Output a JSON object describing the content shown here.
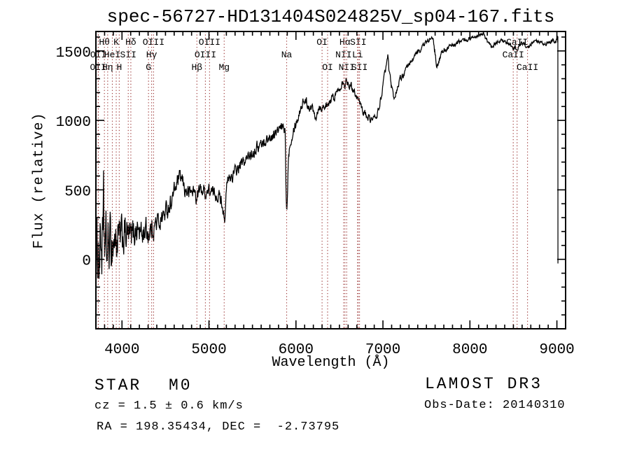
{
  "title": "spec-56727-HD131404S024825V_sp04-167.fits",
  "annotations": {
    "object_type": "STAR",
    "subclass": "M0",
    "cz": "cz = 1.5 ± 0.6 km/s",
    "ra_dec": "RA = 198.35434, DEC =  -2.73795",
    "survey": "LAMOST DR3",
    "obs_date": "Obs-Date: 20140310"
  },
  "colors": {
    "background": "#ffffff",
    "spectrum": "#000000",
    "axis": "#000000",
    "line_marker": "#9e3a3a",
    "text": "#000000"
  },
  "spectral_lines": [
    {
      "label": "OII",
      "wavelength": 3726.0,
      "row": 3
    },
    {
      "label": "OII",
      "wavelength": 3728.8,
      "row": 2
    },
    {
      "label": "Hθ",
      "wavelength": 3798.0,
      "row": 1
    },
    {
      "label": "Hη",
      "wavelength": 3835.4,
      "row": 3
    },
    {
      "label": "HeI",
      "wavelength": 3889.0,
      "row": 2
    },
    {
      "label": "K",
      "wavelength": 3933.7,
      "row": 1
    },
    {
      "label": "H",
      "wavelength": 3968.5,
      "row": 3
    },
    {
      "label": "SII",
      "wavelength": 4072.0,
      "row": 2
    },
    {
      "label": "Hδ",
      "wavelength": 4101.7,
      "row": 1
    },
    {
      "label": "G",
      "wavelength": 4305.0,
      "row": 3
    },
    {
      "label": "Hγ",
      "wavelength": 4340.5,
      "row": 2
    },
    {
      "label": "OIII",
      "wavelength": 4363.2,
      "row": 1
    },
    {
      "label": "Hβ",
      "wavelength": 4861.3,
      "row": 3
    },
    {
      "label": "OIII",
      "wavelength": 4958.9,
      "row": 2
    },
    {
      "label": "OIII",
      "wavelength": 5006.8,
      "row": 1
    },
    {
      "label": "Mg",
      "wavelength": 5175.0,
      "row": 3
    },
    {
      "label": "Na",
      "wavelength": 5893.0,
      "row": 2
    },
    {
      "label": "OI",
      "wavelength": 6300.3,
      "row": 1
    },
    {
      "label": "OI",
      "wavelength": 6363.8,
      "row": 3
    },
    {
      "label": "NII",
      "wavelength": 6548.0,
      "row": 2
    },
    {
      "label": "Hα",
      "wavelength": 6562.8,
      "row": 1
    },
    {
      "label": "NII",
      "wavelength": 6583.5,
      "row": 3
    },
    {
      "label": "Li",
      "wavelength": 6707.9,
      "row": 2
    },
    {
      "label": "SII",
      "wavelength": 6716.4,
      "row": 1
    },
    {
      "label": "SII",
      "wavelength": 6730.8,
      "row": 3
    },
    {
      "label": "CaII",
      "wavelength": 8498.0,
      "row": 2
    },
    {
      "label": "CaII",
      "wavelength": 8542.1,
      "row": 1
    },
    {
      "label": "CaII",
      "wavelength": 8662.1,
      "row": 3
    }
  ],
  "chart_data": {
    "type": "line",
    "title": "spec-56727-HD131404S024825V_sp04-167.fits",
    "xlabel": "Wavelength (Å)",
    "ylabel": "Flux (relative)",
    "xlim": [
      3700,
      9100
    ],
    "ylim": [
      -500,
      1640
    ],
    "x_major_ticks": [
      4000,
      5000,
      6000,
      7000,
      8000,
      9000
    ],
    "y_major_ticks": [
      0,
      500,
      1000,
      1500
    ],
    "x_minor_step": 100,
    "y_minor_step": 100,
    "grid": false,
    "legend": false,
    "series": [
      {
        "name": "spectrum",
        "color": "#000000",
        "representation": "envelope anchor points [wavelength_A, flux]; rendered trace adds correlated pseudo-noise of amplitude sigma(λ)",
        "sample_step_angstrom": 4,
        "noise_seed": 1234,
        "points": [
          [
            3700,
            60
          ],
          [
            3712,
            -30
          ],
          [
            3724,
            140
          ],
          [
            3740,
            30
          ],
          [
            3755,
            150
          ],
          [
            3770,
            80
          ],
          [
            3786,
            120
          ],
          [
            3788,
            590
          ],
          [
            3790,
            610
          ],
          [
            3792,
            120
          ],
          [
            3812,
            80
          ],
          [
            3835,
            70
          ],
          [
            3862,
            110
          ],
          [
            3889,
            115
          ],
          [
            3912,
            150
          ],
          [
            3934,
            115
          ],
          [
            3952,
            160
          ],
          [
            3968,
            125
          ],
          [
            4000,
            150
          ],
          [
            4040,
            185
          ],
          [
            4072,
            160
          ],
          [
            4102,
            150
          ],
          [
            4135,
            200
          ],
          [
            4180,
            225
          ],
          [
            4226,
            175
          ],
          [
            4262,
            215
          ],
          [
            4305,
            195
          ],
          [
            4341,
            215
          ],
          [
            4385,
            250
          ],
          [
            4440,
            285
          ],
          [
            4500,
            335
          ],
          [
            4560,
            410
          ],
          [
            4620,
            525
          ],
          [
            4660,
            590
          ],
          [
            4692,
            565
          ],
          [
            4725,
            500
          ],
          [
            4762,
            478
          ],
          [
            4820,
            495
          ],
          [
            4845,
            470
          ],
          [
            4861,
            425
          ],
          [
            4878,
            490
          ],
          [
            4920,
            505
          ],
          [
            4959,
            480
          ],
          [
            5000,
            492
          ],
          [
            5050,
            472
          ],
          [
            5100,
            468
          ],
          [
            5140,
            430
          ],
          [
            5165,
            360
          ],
          [
            5186,
            285
          ],
          [
            5200,
            500
          ],
          [
            5218,
            570
          ],
          [
            5245,
            588
          ],
          [
            5285,
            615
          ],
          [
            5330,
            650
          ],
          [
            5380,
            688
          ],
          [
            5425,
            710
          ],
          [
            5480,
            760
          ],
          [
            5540,
            800
          ],
          [
            5600,
            828
          ],
          [
            5660,
            855
          ],
          [
            5720,
            882
          ],
          [
            5780,
            915
          ],
          [
            5842,
            945
          ],
          [
            5875,
            940
          ],
          [
            5888,
            430
          ],
          [
            5894,
            336
          ],
          [
            5900,
            450
          ],
          [
            5916,
            780
          ],
          [
            5942,
            870
          ],
          [
            5980,
            958
          ],
          [
            6020,
            1010
          ],
          [
            6062,
            1110
          ],
          [
            6100,
            1150
          ],
          [
            6142,
            1108
          ],
          [
            6185,
            1088
          ],
          [
            6230,
            1035
          ],
          [
            6270,
            1108
          ],
          [
            6302,
            1088
          ],
          [
            6332,
            1118
          ],
          [
            6364,
            1088
          ],
          [
            6400,
            1148
          ],
          [
            6452,
            1180
          ],
          [
            6502,
            1240
          ],
          [
            6540,
            1292
          ],
          [
            6563,
            1258
          ],
          [
            6582,
            1290
          ],
          [
            6612,
            1262
          ],
          [
            6652,
            1230
          ],
          [
            6700,
            1180
          ],
          [
            6732,
            1128
          ],
          [
            6772,
            1068
          ],
          [
            6832,
            1022
          ],
          [
            6882,
            1005
          ],
          [
            6922,
            1022
          ],
          [
            6952,
            1080
          ],
          [
            6982,
            1180
          ],
          [
            7012,
            1295
          ],
          [
            7042,
            1405
          ],
          [
            7056,
            1460
          ],
          [
            7072,
            1340
          ],
          [
            7102,
            1228
          ],
          [
            7132,
            1160
          ],
          [
            7162,
            1232
          ],
          [
            7202,
            1300
          ],
          [
            7262,
            1352
          ],
          [
            7322,
            1420
          ],
          [
            7382,
            1480
          ],
          [
            7442,
            1520
          ],
          [
            7502,
            1562
          ],
          [
            7546,
            1605
          ],
          [
            7582,
            1558
          ],
          [
            7602,
            1468
          ],
          [
            7618,
            1388
          ],
          [
            7642,
            1402
          ],
          [
            7666,
            1482
          ],
          [
            7702,
            1510
          ],
          [
            7752,
            1525
          ],
          [
            7802,
            1540
          ],
          [
            7862,
            1560
          ],
          [
            7922,
            1575
          ],
          [
            7982,
            1586
          ],
          [
            8042,
            1600
          ],
          [
            8102,
            1620
          ],
          [
            8150,
            1630
          ],
          [
            8202,
            1568
          ],
          [
            8252,
            1524
          ],
          [
            8302,
            1560
          ],
          [
            8362,
            1580
          ],
          [
            8422,
            1555
          ],
          [
            8472,
            1540
          ],
          [
            8498,
            1506
          ],
          [
            8522,
            1532
          ],
          [
            8542,
            1500
          ],
          [
            8582,
            1548
          ],
          [
            8622,
            1560
          ],
          [
            8662,
            1515
          ],
          [
            8702,
            1550
          ],
          [
            8752,
            1570
          ],
          [
            8802,
            1555
          ],
          [
            8852,
            1540
          ],
          [
            8902,
            1556
          ],
          [
            8952,
            1570
          ],
          [
            9002,
            1572
          ],
          [
            9006,
            1600
          ],
          [
            9009,
            1560
          ],
          [
            9011,
            1605
          ],
          [
            9012,
            -30
          ]
        ],
        "noise_sigma_points": [
          [
            3700,
            300
          ],
          [
            3750,
            270
          ],
          [
            3800,
            240
          ],
          [
            3850,
            210
          ],
          [
            3900,
            190
          ],
          [
            3950,
            175
          ],
          [
            4000,
            150
          ],
          [
            4100,
            120
          ],
          [
            4250,
            95
          ],
          [
            4400,
            78
          ],
          [
            4600,
            62
          ],
          [
            4861,
            52
          ],
          [
            5100,
            48
          ],
          [
            5400,
            45
          ],
          [
            5700,
            42
          ],
          [
            5900,
            40
          ],
          [
            6100,
            35
          ],
          [
            6400,
            30
          ],
          [
            6563,
            28
          ],
          [
            6900,
            26
          ],
          [
            7200,
            24
          ],
          [
            7500,
            21
          ],
          [
            7800,
            17
          ],
          [
            8100,
            13
          ],
          [
            8400,
            13
          ],
          [
            8700,
            14
          ],
          [
            9012,
            18
          ]
        ]
      }
    ]
  }
}
